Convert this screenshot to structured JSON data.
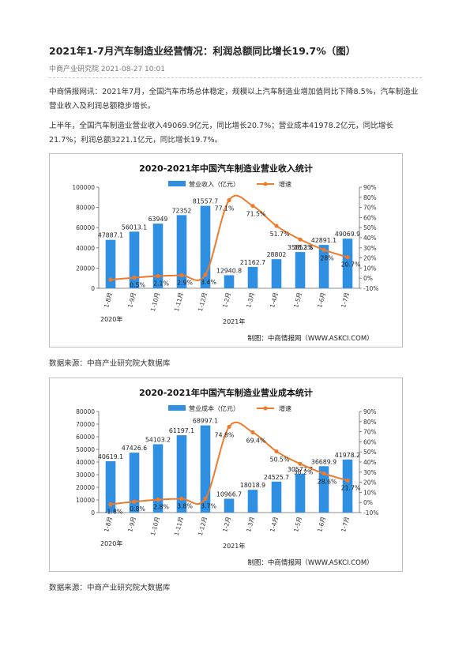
{
  "article": {
    "title": "2021年1-7月汽车制造业经营情况：利润总额同比增长19.7%（图）",
    "meta": "中商产业研究院 2021-08-27 10:01",
    "para1": "中商情报网讯：2021年7月，全国汽车市场总体稳定，规模以上汽车制造业增加值同比下降8.5%，汽车制造业营业收入及利润总额稳步增长。",
    "para2": "上半年，全国汽车制造业营业收入49069.9亿元，同比增长20.7%；营业成本41978.2亿元，同比增长21.7%；利润总额3221.1亿元，同比增长19.7%。",
    "source1": "数据来源：中商产业研究院大数据库",
    "source2": "数据来源：中商产业研究院大数据库"
  },
  "chart_data": [
    {
      "type": "bar",
      "title": "2020-2021年中国汽车制造业营业收入统计",
      "categories": [
        "1-8月",
        "1-9月",
        "1-10月",
        "1-11月",
        "1-12月",
        "1-2月",
        "1-3月",
        "1-4月",
        "1-5月",
        "1-6月",
        "1-7月"
      ],
      "category_groups": [
        {
          "label": "2020年"
        },
        {
          "label": "2021年"
        }
      ],
      "series": [
        {
          "name": "营业收入（亿元）",
          "kind": "bar",
          "axis": "left",
          "color": "#2f8fe0",
          "values": [
            47887.1,
            56013.1,
            63949,
            72352,
            81557.7,
            12940.8,
            21162.7,
            28802,
            35852.8,
            42891.1,
            49069.9
          ],
          "labels": [
            "47887.1",
            "56013.1",
            "63949",
            "72352",
            "81557.7",
            "12940.8",
            "21162.7",
            "28802",
            "35852.8",
            "42891.1",
            "49069.9"
          ]
        },
        {
          "name": "增速",
          "kind": "line",
          "axis": "right",
          "color": "#f07a2c",
          "values": [
            -1.5,
            0.5,
            2.1,
            2.9,
            3.4,
            77.1,
            71.5,
            51.7,
            38.3,
            28,
            20.7
          ],
          "labels": [
            "",
            "0.5%",
            "2.1%",
            "2.9%",
            "3.4%",
            "77.1%",
            "71.5%",
            "51.7%",
            "38.3%",
            "28%",
            "20.7%"
          ]
        }
      ],
      "ylim_left": [
        0,
        100000
      ],
      "yticks_left": [
        "0",
        "20000",
        "40000",
        "60000",
        "80000",
        "100000"
      ],
      "ylim_right": [
        -10,
        90
      ],
      "yticks_right": [
        "-10%",
        "0%",
        "10%",
        "20%",
        "30%",
        "40%",
        "50%",
        "60%",
        "70%",
        "80%",
        "90%"
      ],
      "legend_position": "top",
      "footer": "制图：中商情报网（WWW.ASKCI.COM）",
      "grid": false
    },
    {
      "type": "bar",
      "title": "2020-2021年中国汽车制造业营业成本统计",
      "categories": [
        "1-8月",
        "1-9月",
        "1-10月",
        "1-11月",
        "1-12月",
        "1-2月",
        "1-3月",
        "1-4月",
        "1-5月",
        "1-6月",
        "1-7月"
      ],
      "category_groups": [
        {
          "label": "2020年"
        },
        {
          "label": "2021年"
        }
      ],
      "series": [
        {
          "name": "营业成本（亿元）",
          "kind": "bar",
          "axis": "left",
          "color": "#2f8fe0",
          "values": [
            40619.1,
            47426.6,
            54103.2,
            61197.1,
            68997.1,
            10966.7,
            18018.9,
            24525.7,
            30577.7,
            36689.9,
            41978.2
          ],
          "labels": [
            "40619.1",
            "47426.6",
            "54103.2",
            "61197.1",
            "68997.1",
            "10966.7",
            "18018.9",
            "24525.7",
            "30577.7",
            "36689.9",
            "41978.2"
          ]
        },
        {
          "name": "增速",
          "kind": "line",
          "axis": "right",
          "color": "#f07a2c",
          "values": [
            -1.8,
            0.8,
            2.8,
            3.8,
            3.7,
            74.8,
            69.4,
            50.5,
            38.2,
            28.6,
            21.7
          ],
          "labels": [
            "-1.8%",
            "0.8%",
            "2.8%",
            "3.8%",
            "3.7%",
            "74.8%",
            "69.4%",
            "50.5%",
            "38.2%",
            "28.6%",
            "21.7%"
          ]
        }
      ],
      "ylim_left": [
        0,
        80000
      ],
      "yticks_left": [
        "0",
        "10000",
        "20000",
        "30000",
        "40000",
        "50000",
        "60000",
        "70000",
        "80000"
      ],
      "ylim_right": [
        -10,
        90
      ],
      "yticks_right": [
        "-10%",
        "0%",
        "10%",
        "20%",
        "30%",
        "40%",
        "50%",
        "60%",
        "70%",
        "80%",
        "90%"
      ],
      "legend_position": "top",
      "footer": "制图：中商情报网（WWW.ASKCI.COM）",
      "grid": false
    }
  ]
}
